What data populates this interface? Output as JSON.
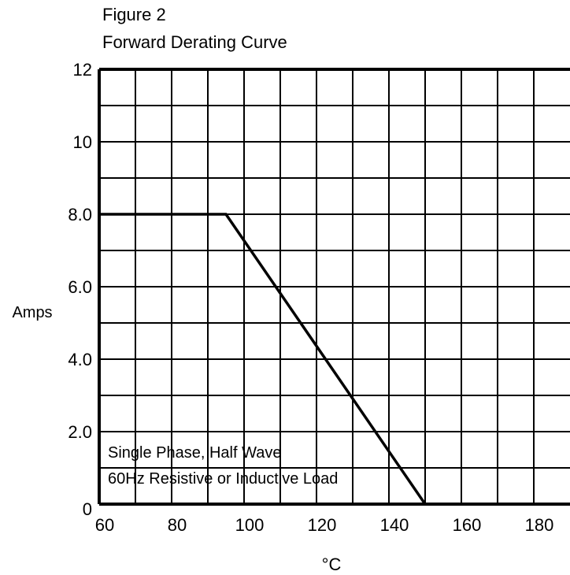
{
  "chart_data": {
    "type": "line",
    "figure_label": "Figure 2",
    "title": "Forward Derating Curve",
    "xlabel": "°C",
    "ylabel": "Amps",
    "xlim": [
      60,
      190
    ],
    "ylim": [
      0,
      12
    ],
    "x_minor_step": 10,
    "y_minor_step": 1,
    "grid": true,
    "x_ticks": [
      {
        "value": 60,
        "label": "60"
      },
      {
        "value": 80,
        "label": "80"
      },
      {
        "value": 100,
        "label": "100"
      },
      {
        "value": 120,
        "label": "120"
      },
      {
        "value": 140,
        "label": "140"
      },
      {
        "value": 160,
        "label": "160"
      },
      {
        "value": 180,
        "label": "180"
      }
    ],
    "y_ticks": [
      {
        "value": 0,
        "label": "0"
      },
      {
        "value": 2,
        "label": "2.0"
      },
      {
        "value": 4,
        "label": "4.0"
      },
      {
        "value": 6,
        "label": "6.0"
      },
      {
        "value": 8,
        "label": "8.0"
      },
      {
        "value": 10,
        "label": "10"
      },
      {
        "value": 12,
        "label": "12"
      }
    ],
    "series": [
      {
        "x": [
          60,
          95,
          150
        ],
        "y": [
          8.0,
          8.0,
          0
        ]
      }
    ],
    "annotation": [
      "Single Phase, Half Wave",
      "60Hz Resistive or Inductive Load"
    ]
  }
}
